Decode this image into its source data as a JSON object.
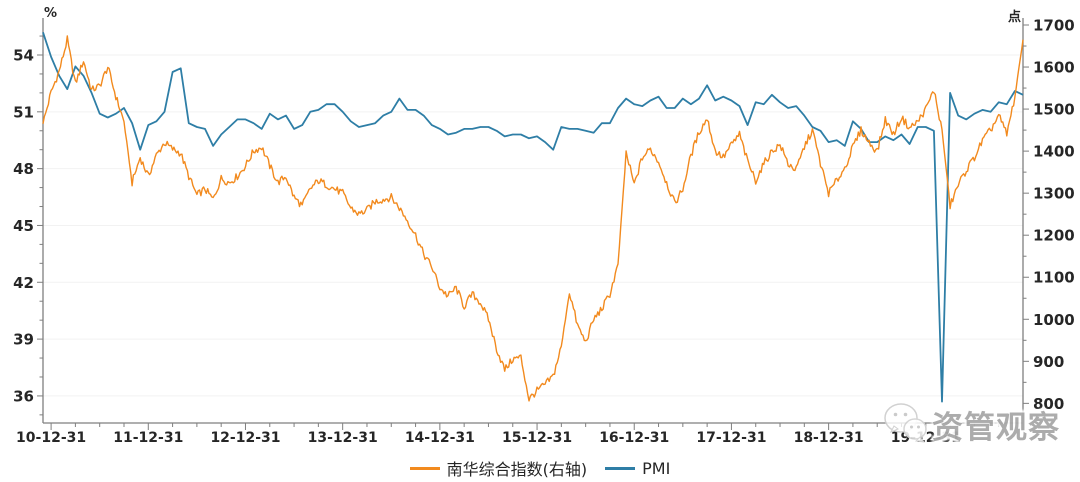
{
  "chart_data": {
    "type": "line",
    "title": "",
    "left_axis": {
      "label": "%",
      "ticks": [
        36,
        39,
        42,
        45,
        48,
        51,
        54
      ],
      "minor_tick_step": 1,
      "range_hint": [
        34.6,
        56.0
      ]
    },
    "right_axis": {
      "label": "点",
      "ticks": [
        800,
        900,
        1000,
        1100,
        1200,
        1300,
        1400,
        1500,
        1600,
        1700
      ],
      "minor_tick_step": 50,
      "range_hint": [
        752,
        1717
      ]
    },
    "x_axis": {
      "tick_labels": [
        "10-12-31",
        "11-12-31",
        "12-12-31",
        "13-12-31",
        "14-12-31",
        "15-12-31",
        "16-12-31",
        "17-12-31",
        "18-12-31",
        "19-12-31"
      ],
      "minor_ticks": "quarterly",
      "start_month": "2010-11",
      "end_month": "2020-12"
    },
    "grid": "horizontal-light",
    "legend_position": "bottom",
    "series": [
      {
        "name": "南华综合指数(右轴)",
        "axis": "right",
        "color": "#F28A1E",
        "frequency": "monthly",
        "daily_noise_amplitude": 9,
        "values": [
          1465,
          1540,
          1590,
          1665,
          1560,
          1615,
          1545,
          1555,
          1600,
          1530,
          1470,
          1325,
          1385,
          1340,
          1390,
          1420,
          1405,
          1395,
          1340,
          1295,
          1310,
          1285,
          1335,
          1325,
          1340,
          1365,
          1400,
          1410,
          1365,
          1325,
          1340,
          1290,
          1270,
          1310,
          1330,
          1320,
          1310,
          1300,
          1265,
          1250,
          1260,
          1280,
          1285,
          1290,
          1265,
          1235,
          1200,
          1155,
          1125,
          1075,
          1055,
          1075,
          1030,
          1060,
          1040,
          1000,
          930,
          880,
          905,
          910,
          810,
          830,
          845,
          865,
          935,
          1065,
          985,
          945,
          1000,
          1025,
          1060,
          1130,
          1395,
          1320,
          1385,
          1405,
          1375,
          1325,
          1275,
          1310,
          1390,
          1445,
          1478,
          1400,
          1385,
          1415,
          1440,
          1375,
          1330,
          1370,
          1400,
          1415,
          1370,
          1355,
          1410,
          1450,
          1370,
          1300,
          1330,
          1360,
          1410,
          1450,
          1420,
          1400,
          1475,
          1440,
          1480,
          1455,
          1470,
          1500,
          1545,
          1450,
          1270,
          1320,
          1355,
          1385,
          1425,
          1450,
          1485,
          1440,
          1530,
          1665
        ]
      },
      {
        "name": "PMI",
        "axis": "left",
        "color": "#2E7EA6",
        "frequency": "monthly",
        "values": [
          55.2,
          53.9,
          52.9,
          52.2,
          53.4,
          52.9,
          52.0,
          50.9,
          50.7,
          50.9,
          51.2,
          50.4,
          49.0,
          50.3,
          50.5,
          51.0,
          53.1,
          53.3,
          50.4,
          50.2,
          50.1,
          49.2,
          49.8,
          50.2,
          50.6,
          50.6,
          50.4,
          50.1,
          50.9,
          50.6,
          50.8,
          50.1,
          50.3,
          51.0,
          51.1,
          51.4,
          51.4,
          51.0,
          50.5,
          50.2,
          50.3,
          50.4,
          50.8,
          51.0,
          51.7,
          51.1,
          51.1,
          50.8,
          50.3,
          50.1,
          49.8,
          49.9,
          50.1,
          50.1,
          50.2,
          50.2,
          50.0,
          49.7,
          49.8,
          49.8,
          49.6,
          49.7,
          49.4,
          49.0,
          50.2,
          50.1,
          50.1,
          50.0,
          49.9,
          50.4,
          50.4,
          51.2,
          51.7,
          51.4,
          51.3,
          51.6,
          51.8,
          51.2,
          51.2,
          51.7,
          51.4,
          51.7,
          52.4,
          51.6,
          51.8,
          51.6,
          51.3,
          50.3,
          51.5,
          51.4,
          51.9,
          51.5,
          51.2,
          51.3,
          50.8,
          50.2,
          50.0,
          49.4,
          49.5,
          49.2,
          50.5,
          50.1,
          49.4,
          49.4,
          49.7,
          49.5,
          49.8,
          49.3,
          50.2,
          50.2,
          50.0,
          35.7,
          52.0,
          50.8,
          50.6,
          50.9,
          51.1,
          51.0,
          51.5,
          51.4,
          52.1,
          51.9
        ]
      }
    ],
    "colors": {
      "grid": "#f2f2f2",
      "axis": "#7f7f7f",
      "tick_label": "#262626"
    }
  },
  "legend": {
    "items": [
      {
        "label": "南华综合指数(右轴)",
        "color": "#F28A1E"
      },
      {
        "label": "PMI",
        "color": "#2E7EA6"
      }
    ]
  },
  "watermark": {
    "text": "资管观察",
    "icon": "wechat-icon"
  }
}
